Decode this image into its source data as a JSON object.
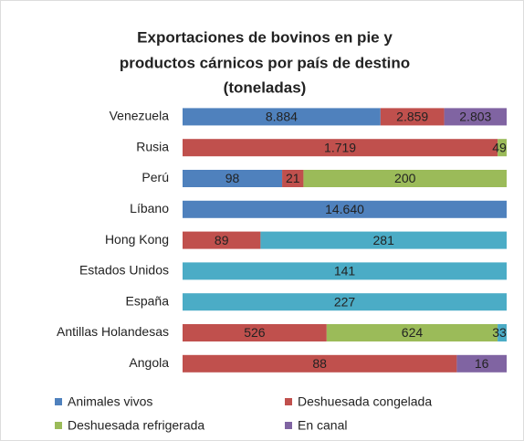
{
  "chart_data": {
    "type": "bar",
    "orientation": "horizontal",
    "stacking": "percent",
    "title": [
      "Exportaciones de bovinos en pie y",
      "productos cárnicos por país de destino",
      "(toneladas)"
    ],
    "categories": [
      "Venezuela",
      "Rusia",
      "Perú",
      "Líbano",
      "Hong Kong",
      "Estados Unidos",
      "España",
      "Antillas Holandesas",
      "Angola"
    ],
    "series": [
      {
        "name": "Animales vivos",
        "color": "#4f81bd",
        "values": [
          8884,
          null,
          98,
          14640,
          null,
          null,
          null,
          null,
          null
        ],
        "value_labels": [
          "8.884",
          null,
          "98",
          "14.640",
          null,
          null,
          null,
          null,
          null
        ]
      },
      {
        "name": "Deshuesada congelada",
        "color": "#c0504d",
        "values": [
          2859,
          1719,
          21,
          null,
          89,
          null,
          null,
          526,
          88
        ],
        "value_labels": [
          "2.859",
          "1.719",
          "21",
          null,
          "89",
          null,
          null,
          "526",
          "88"
        ]
      },
      {
        "name": "Deshuesada refrigerada",
        "color": "#9bbb59",
        "values": [
          null,
          49,
          200,
          null,
          null,
          null,
          null,
          624,
          null
        ]
      },
      {
        "name": "En canal",
        "color": "#8064a2",
        "values": [
          2803,
          null,
          null,
          null,
          null,
          null,
          null,
          null,
          16
        ],
        "value_labels": [
          "2.803",
          null,
          null,
          null,
          null,
          null,
          null,
          null,
          "16"
        ]
      },
      {
        "color": "#4bacc6",
        "values": [
          null,
          null,
          null,
          null,
          281,
          141,
          227,
          33,
          null
        ]
      }
    ],
    "legend": "bottom"
  }
}
